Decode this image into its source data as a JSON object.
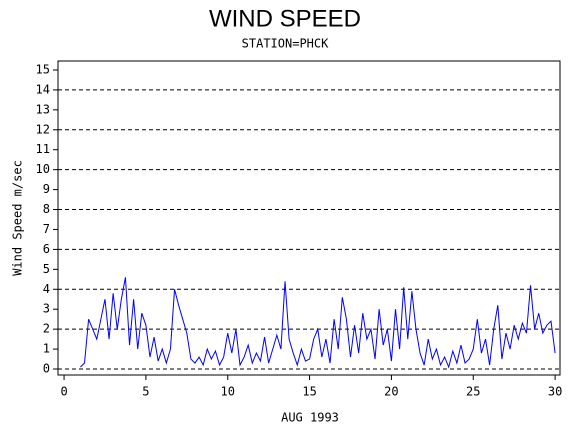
{
  "chart_data": {
    "type": "line",
    "title": "WIND SPEED",
    "subtitle": "STATION=PHCK",
    "x_label": "AUG 1993",
    "y_label": "Wind Speed m/sec",
    "xlim": [
      -0.37,
      30.3
    ],
    "ylim": [
      -0.3,
      15.45
    ],
    "xticks": [
      0,
      5,
      10,
      15,
      20,
      25,
      30
    ],
    "yticks": [
      0,
      1,
      2,
      3,
      4,
      5,
      6,
      7,
      8,
      9,
      10,
      11,
      12,
      13,
      14,
      15
    ],
    "grid_lines": [
      0,
      2,
      4,
      6,
      8,
      10,
      12,
      14
    ],
    "x": [
      1.0,
      1.25,
      1.5,
      1.75,
      2.0,
      2.25,
      2.5,
      2.75,
      3.0,
      3.25,
      3.5,
      3.75,
      4.0,
      4.25,
      4.5,
      4.75,
      5.0,
      5.25,
      5.5,
      5.75,
      6.0,
      6.25,
      6.5,
      6.75,
      7.0,
      7.25,
      7.5,
      7.75,
      8.0,
      8.25,
      8.5,
      8.75,
      9.0,
      9.25,
      9.5,
      9.75,
      10.0,
      10.25,
      10.5,
      10.75,
      11.0,
      11.25,
      11.5,
      11.75,
      12.0,
      12.25,
      12.5,
      12.75,
      13.0,
      13.25,
      13.5,
      13.75,
      14.0,
      14.25,
      14.5,
      14.75,
      15.0,
      15.25,
      15.5,
      15.75,
      16.0,
      16.25,
      16.5,
      16.75,
      17.0,
      17.25,
      17.5,
      17.75,
      18.0,
      18.25,
      18.5,
      18.75,
      19.0,
      19.25,
      19.5,
      19.75,
      20.0,
      20.25,
      20.5,
      20.75,
      21.0,
      21.25,
      21.5,
      21.75,
      22.0,
      22.25,
      22.5,
      22.75,
      23.0,
      23.25,
      23.5,
      23.75,
      24.0,
      24.25,
      24.5,
      24.75,
      25.0,
      25.25,
      25.5,
      25.75,
      26.0,
      26.25,
      26.5,
      26.75,
      27.0,
      27.25,
      27.5,
      27.75,
      28.0,
      28.25,
      28.5,
      28.75,
      29.0,
      29.25,
      29.5,
      29.75,
      30.0
    ],
    "series": [
      {
        "name": "Wind Speed",
        "color": "#0000ff",
        "values": [
          0.1,
          0.3,
          2.5,
          2.0,
          1.5,
          2.5,
          3.5,
          1.5,
          3.8,
          2.0,
          3.5,
          4.6,
          1.2,
          3.5,
          1.0,
          2.8,
          2.2,
          0.6,
          1.6,
          0.4,
          1.0,
          0.3,
          1.0,
          4.0,
          3.2,
          2.5,
          1.8,
          0.5,
          0.3,
          0.6,
          0.2,
          1.0,
          0.5,
          0.9,
          0.2,
          0.6,
          1.8,
          0.8,
          2.0,
          0.2,
          0.6,
          1.2,
          0.3,
          0.8,
          0.4,
          1.6,
          0.3,
          1.0,
          1.7,
          1.0,
          4.4,
          1.5,
          0.8,
          0.2,
          1.0,
          0.4,
          0.5,
          1.5,
          2.0,
          0.6,
          1.5,
          0.3,
          2.5,
          1.0,
          3.6,
          2.5,
          0.6,
          2.2,
          0.8,
          2.8,
          1.5,
          2.0,
          0.5,
          3.0,
          1.2,
          2.0,
          0.4,
          3.0,
          1.0,
          4.1,
          1.5,
          3.9,
          2.0,
          0.8,
          0.2,
          1.5,
          0.5,
          1.0,
          0.2,
          0.6,
          0.1,
          0.9,
          0.3,
          1.2,
          0.3,
          0.5,
          1.0,
          2.5,
          0.8,
          1.5,
          0.2,
          2.0,
          3.2,
          0.5,
          1.8,
          1.0,
          2.2,
          1.5,
          2.3,
          1.8,
          4.2,
          2.0,
          2.8,
          1.8,
          2.2,
          2.4,
          0.8
        ]
      }
    ]
  }
}
